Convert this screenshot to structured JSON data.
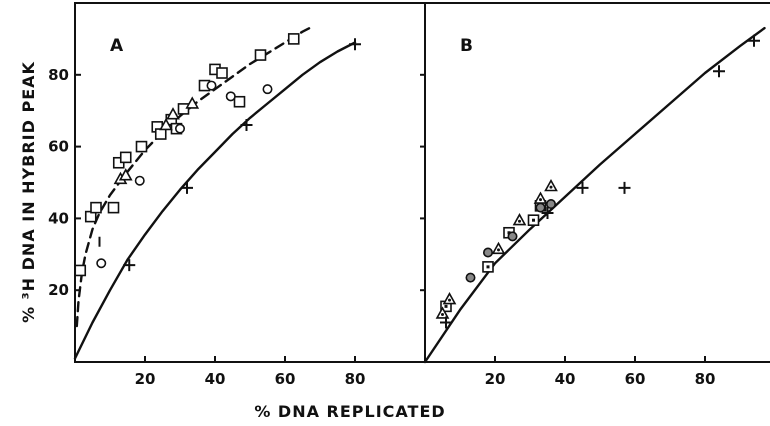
{
  "chart_data": [
    {
      "type": "scatter",
      "panel_label": "A",
      "xlabel": "% DNA REPLICATED",
      "ylabel": "% ³H DNA IN HYBRID PEAK",
      "xlim": [
        0,
        100
      ],
      "ylim": [
        0,
        100
      ],
      "xticks": [
        20,
        40,
        60,
        80
      ],
      "yticks": [
        20,
        40,
        60,
        80
      ],
      "grid": false,
      "series": [
        {
          "marker": "square",
          "x": [
            1.5,
            4.5,
            6,
            11,
            12.5,
            14.5,
            19,
            23.5,
            24.5,
            27.5,
            29,
            31,
            37,
            40,
            42,
            47,
            53,
            62.5
          ],
          "y": [
            25.5,
            40.5,
            43,
            43,
            55.5,
            57,
            60,
            65.5,
            63.5,
            67.5,
            65,
            70.5,
            77,
            81.5,
            80.5,
            72.5,
            85.5,
            90
          ]
        },
        {
          "marker": "circle",
          "x": [
            7.5,
            18.5,
            30,
            39,
            44.5,
            55
          ],
          "y": [
            27.5,
            50.5,
            65,
            77,
            74,
            76
          ]
        },
        {
          "marker": "triangle",
          "x": [
            13,
            14.5,
            26,
            28,
            33.5
          ],
          "y": [
            51,
            52,
            66,
            69,
            72
          ]
        },
        {
          "marker": "plus",
          "x": [
            15.5,
            32,
            49,
            80
          ],
          "y": [
            27,
            48.5,
            66,
            88.5
          ]
        },
        {
          "marker": "dash",
          "x": [
            7
          ],
          "y": [
            33.5
          ]
        }
      ],
      "curves": [
        {
          "style": "dashed",
          "x": [
            0.5,
            1,
            2,
            3,
            5,
            7,
            10,
            15,
            20,
            25,
            30,
            35,
            40,
            45,
            50,
            55,
            60,
            65,
            67
          ],
          "y": [
            10,
            17,
            25,
            30,
            37,
            41.5,
            46.5,
            53,
            59,
            64,
            68.5,
            72.5,
            76,
            79.5,
            83,
            86,
            89,
            92,
            93
          ]
        },
        {
          "style": "solid",
          "x": [
            0,
            5,
            10,
            15,
            20,
            25,
            30,
            35,
            40,
            45,
            50,
            55,
            60,
            65,
            70,
            75,
            80
          ],
          "y": [
            1,
            11,
            20,
            28.5,
            35.5,
            42,
            48,
            53.5,
            58.5,
            63.5,
            68,
            72,
            76,
            80,
            83.5,
            86.5,
            89
          ]
        }
      ]
    },
    {
      "type": "scatter",
      "panel_label": "B",
      "xlabel": "% DNA REPLICATED",
      "xlim": [
        0,
        100
      ],
      "ylim": [
        0,
        100
      ],
      "xticks": [
        20,
        40,
        60,
        80
      ],
      "yticks": [],
      "grid": false,
      "series": [
        {
          "marker": "square",
          "x": [
            6,
            18,
            24,
            31,
            33
          ],
          "y": [
            15.5,
            26.5,
            36,
            39.5,
            43.5
          ]
        },
        {
          "marker": "circle",
          "x": [
            13,
            18,
            25,
            33,
            36
          ],
          "y": [
            23.5,
            30.5,
            35,
            43,
            44
          ]
        },
        {
          "marker": "triangle",
          "x": [
            5,
            7,
            21,
            27,
            33,
            36
          ],
          "y": [
            13.5,
            17.5,
            31.5,
            39.5,
            45.5,
            49
          ]
        },
        {
          "marker": "plus",
          "x": [
            6,
            35,
            45,
            57,
            84,
            94
          ],
          "y": [
            11,
            41.5,
            48.5,
            48.5,
            81,
            89.5
          ]
        }
      ],
      "curves": [
        {
          "style": "solid",
          "x": [
            0,
            10,
            20,
            30,
            40,
            50,
            60,
            70,
            80,
            90,
            97
          ],
          "y": [
            0,
            14.5,
            27.5,
            37,
            46,
            55,
            63.5,
            72,
            80.5,
            88,
            93
          ]
        }
      ]
    }
  ]
}
